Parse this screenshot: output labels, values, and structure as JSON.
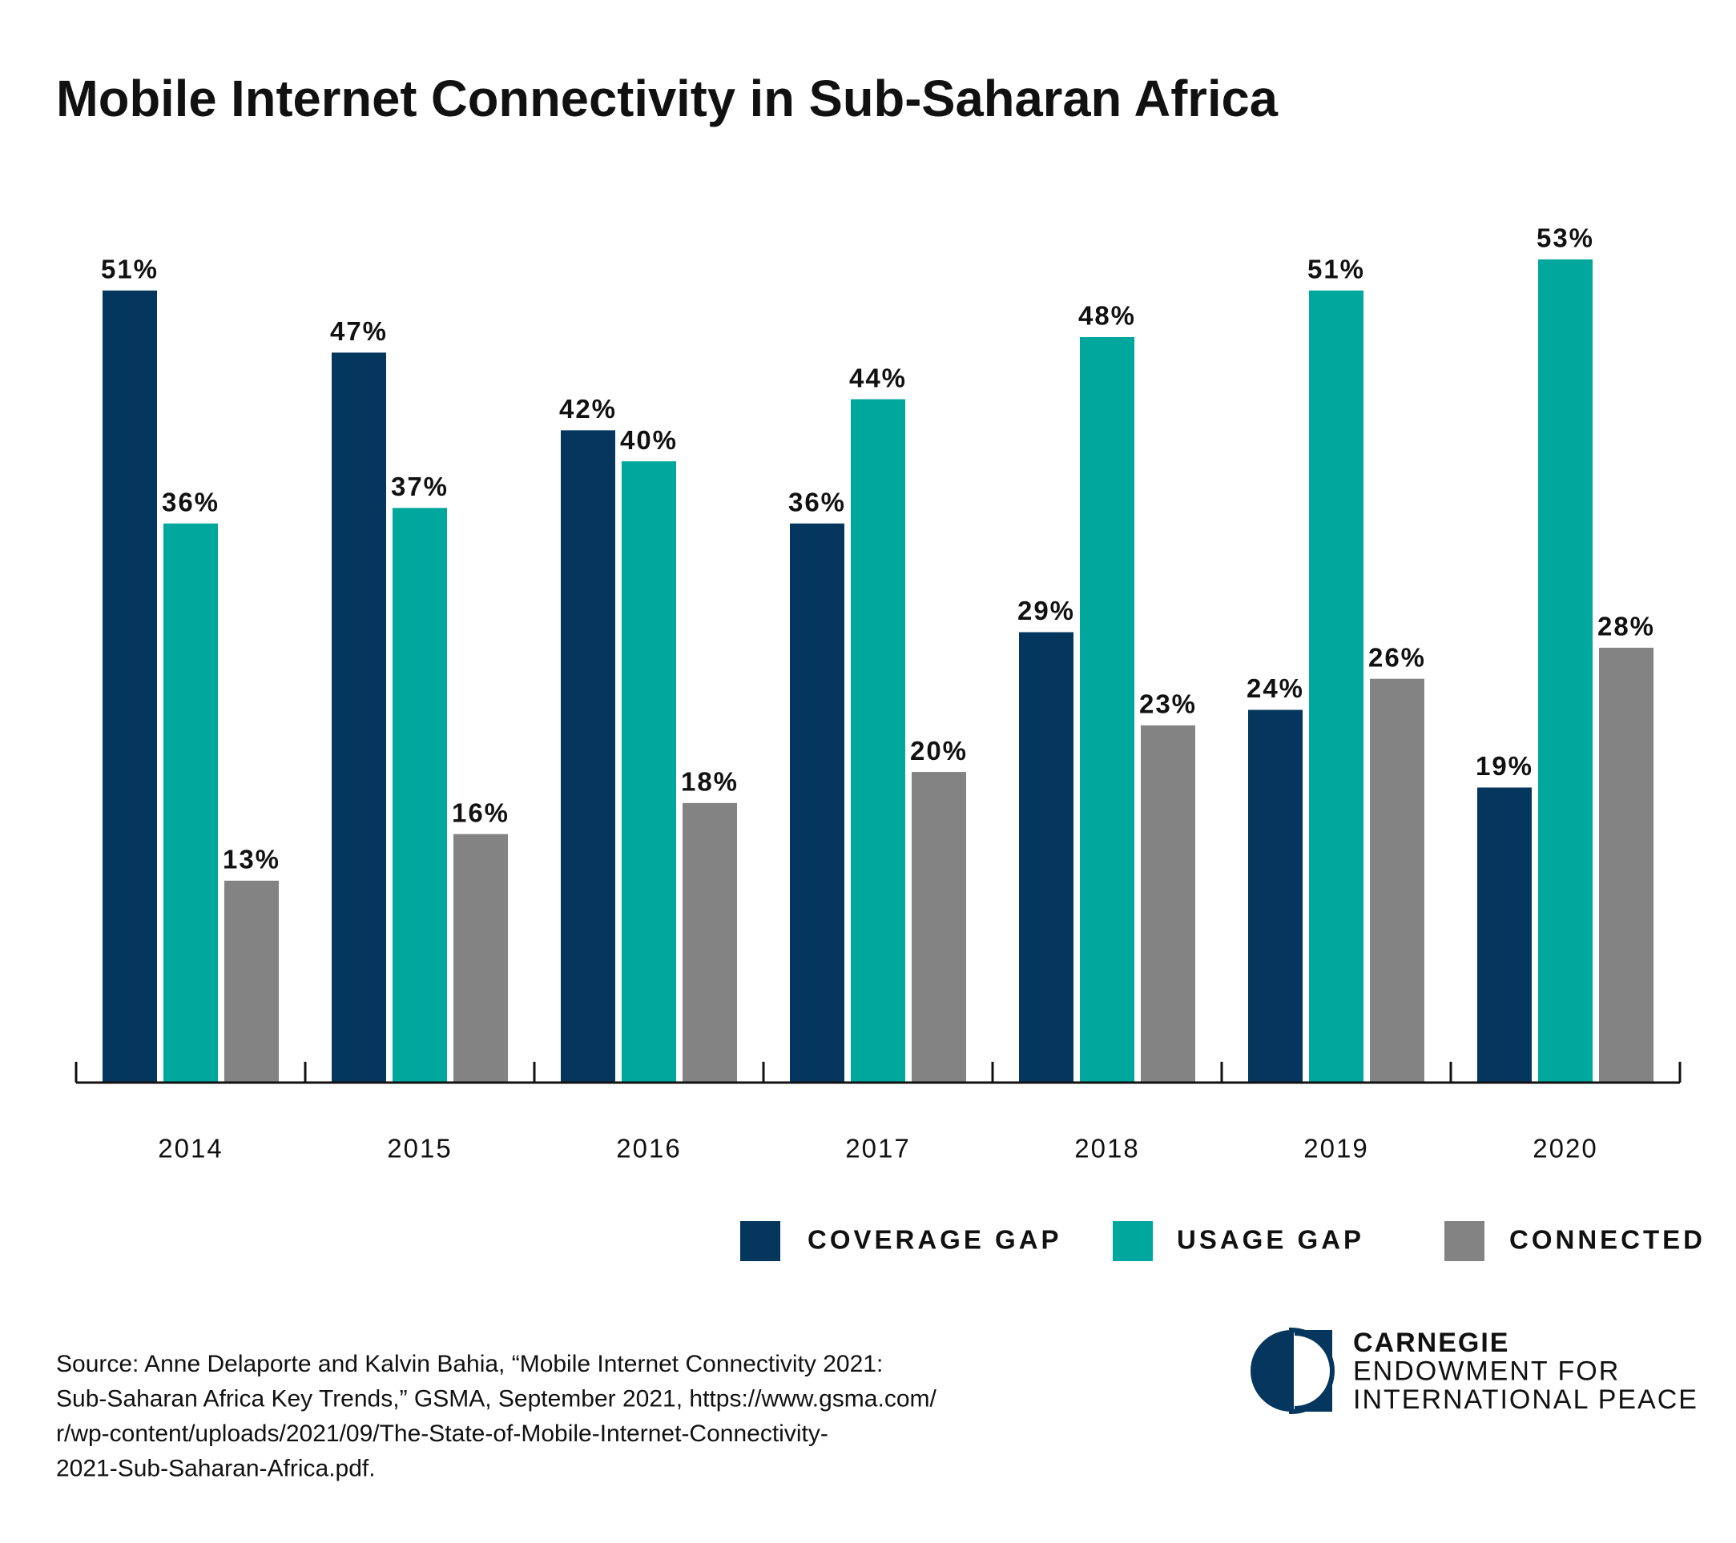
{
  "chart_data": {
    "type": "bar",
    "title": "Mobile Internet Connectivity in Sub-Saharan Africa",
    "categories": [
      "2014",
      "2015",
      "2016",
      "2017",
      "2018",
      "2019",
      "2020"
    ],
    "series": [
      {
        "name": "COVERAGE GAP",
        "color": "#05375e",
        "values": [
          51,
          47,
          42,
          36,
          29,
          24,
          19
        ],
        "value_labels": [
          "51%",
          "47%",
          "42%",
          "36%",
          "29%",
          "24%",
          "19%"
        ]
      },
      {
        "name": "USAGE GAP",
        "color": "#00a79d",
        "values": [
          36,
          37,
          40,
          44,
          48,
          51,
          53
        ],
        "value_labels": [
          "36%",
          "37%",
          "40%",
          "44%",
          "48%",
          "51%",
          "53%"
        ]
      },
      {
        "name": "CONNECTED",
        "color": "#838383",
        "values": [
          13,
          16,
          18,
          20,
          23,
          26,
          28
        ],
        "value_labels": [
          "13%",
          "16%",
          "18%",
          "20%",
          "23%",
          "26%",
          "28%"
        ]
      }
    ],
    "source": [
      "Source: Anne Delaporte and Kalvin Bahia, “Mobile Internet Connectivity 2021:",
      "Sub-Saharan Africa Key Trends,” GSMA, September 2021, https://www.gsma.com/",
      "r/wp-content/uploads/2021/09/The-State-of-Mobile-Internet-Connectivity-",
      "2021-Sub-Saharan-Africa.pdf."
    ],
    "logo": [
      "CARNEGIE",
      "ENDOWMENT FOR",
      "INTERNATIONAL PEACE"
    ]
  }
}
